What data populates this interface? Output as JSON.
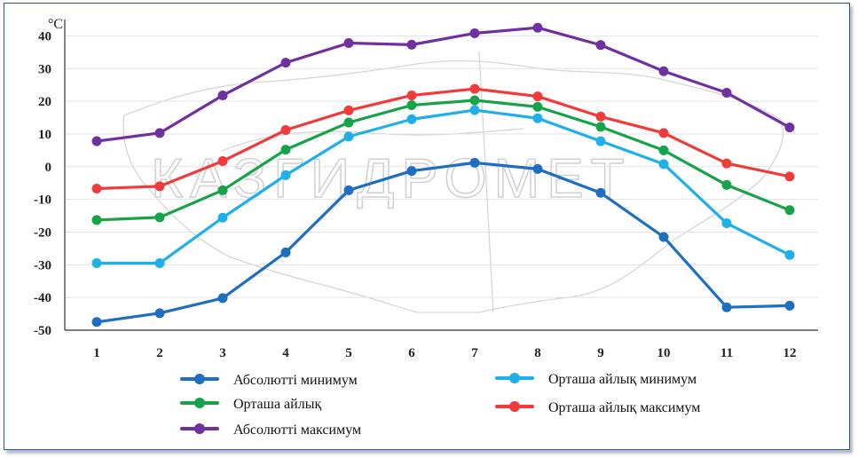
{
  "watermark": "КАЗГИДРОМЕТ",
  "chart_data": {
    "type": "line",
    "ylabel": "°C",
    "xlabel": "",
    "ylim": [
      -50,
      45
    ],
    "y_ticks": [
      40,
      30,
      20,
      10,
      0,
      -10,
      -20,
      -30,
      -40,
      -50
    ],
    "x": [
      1,
      2,
      3,
      4,
      5,
      6,
      7,
      8,
      9,
      10,
      11,
      12
    ],
    "grid": true,
    "legend_position": "bottom",
    "series": [
      {
        "name": "Абсолютті минимум",
        "color": "#1f6fbf",
        "values": [
          -47.5,
          -44.8,
          -40.2,
          -26.2,
          -7.2,
          -1.3,
          1.2,
          -0.7,
          -8.0,
          -21.5,
          -43.0,
          -42.5
        ]
      },
      {
        "name": "Орташа айлық",
        "color": "#16a34a",
        "values": [
          -16.3,
          -15.5,
          -7.2,
          5.2,
          13.5,
          18.8,
          20.3,
          18.3,
          12.2,
          5.0,
          -5.6,
          -13.3
        ]
      },
      {
        "name": "Абсолютті максимум",
        "color": "#7030a0",
        "values": [
          7.8,
          10.3,
          21.8,
          31.8,
          37.8,
          37.3,
          40.8,
          42.5,
          37.2,
          29.2,
          22.6,
          12.0
        ]
      },
      {
        "name": "Орташа айлық минимум",
        "color": "#1eb0e6",
        "values": [
          -29.5,
          -29.5,
          -15.6,
          -2.6,
          9.2,
          14.5,
          17.3,
          14.8,
          7.8,
          0.8,
          -17.3,
          -27.0
        ]
      },
      {
        "name": "Орташа айлық максимум",
        "color": "#ef3b3b",
        "values": [
          -6.7,
          -6.0,
          1.7,
          11.2,
          17.2,
          21.8,
          23.8,
          21.5,
          15.3,
          10.3,
          1.0,
          -3.0
        ]
      }
    ]
  }
}
